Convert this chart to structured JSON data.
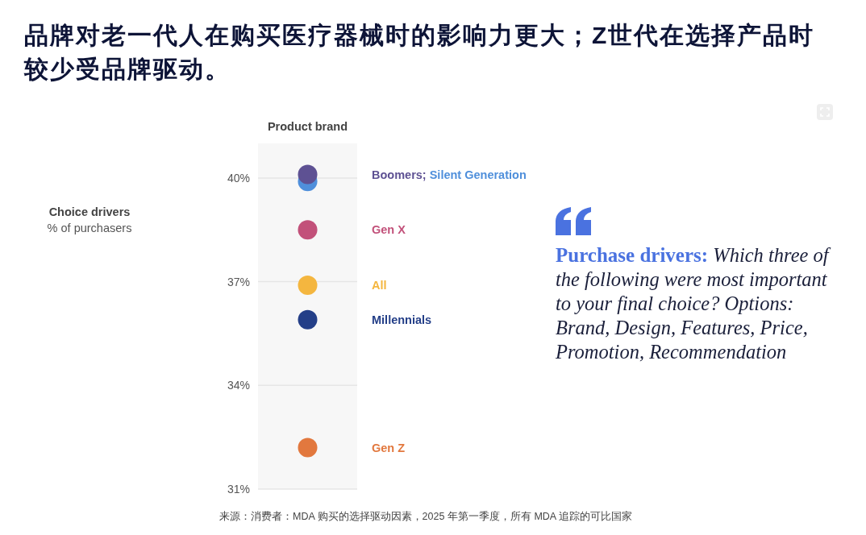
{
  "chart_data": {
    "type": "scatter",
    "title": "品牌对老一代人在购买医疗器械时的影响力更大；Z世代在选择产品时较少受品牌驱动。",
    "categories": [
      "Product brand"
    ],
    "ylim": [
      31,
      41
    ],
    "yticks": [
      {
        "value": 31,
        "label": "31%"
      },
      {
        "value": 34,
        "label": "34%"
      },
      {
        "value": 37,
        "label": "37%"
      },
      {
        "value": 40,
        "label": "40%"
      }
    ],
    "grid": "y",
    "marker": "circle",
    "series": [
      {
        "name": "Boomers;",
        "color": "#5e5193",
        "values": [
          40.1
        ]
      },
      {
        "name": "Silent Generation",
        "color": "#4f8fdb",
        "values": [
          39.9
        ]
      },
      {
        "name": "Gen X",
        "color": "#c2517a",
        "values": [
          38.5
        ]
      },
      {
        "name": "All",
        "color": "#f4b63f",
        "values": [
          36.9
        ]
      },
      {
        "name": "Millennials",
        "color": "#243f88",
        "values": [
          35.9
        ]
      },
      {
        "name": "Gen Z",
        "color": "#e2783e",
        "values": [
          32.2
        ]
      }
    ],
    "annotations": [
      "Choice drivers",
      "% of purchasers",
      "Purchase drivers: Which three of the following were most important to your final choice? Options: Brand, Design, Features, Price, Promotion, Recommendation",
      "来源：消费者：MDA 购买的选择驱动因素，2025 年第一季度，所有 MDA 追踪的可比国家"
    ]
  }
}
